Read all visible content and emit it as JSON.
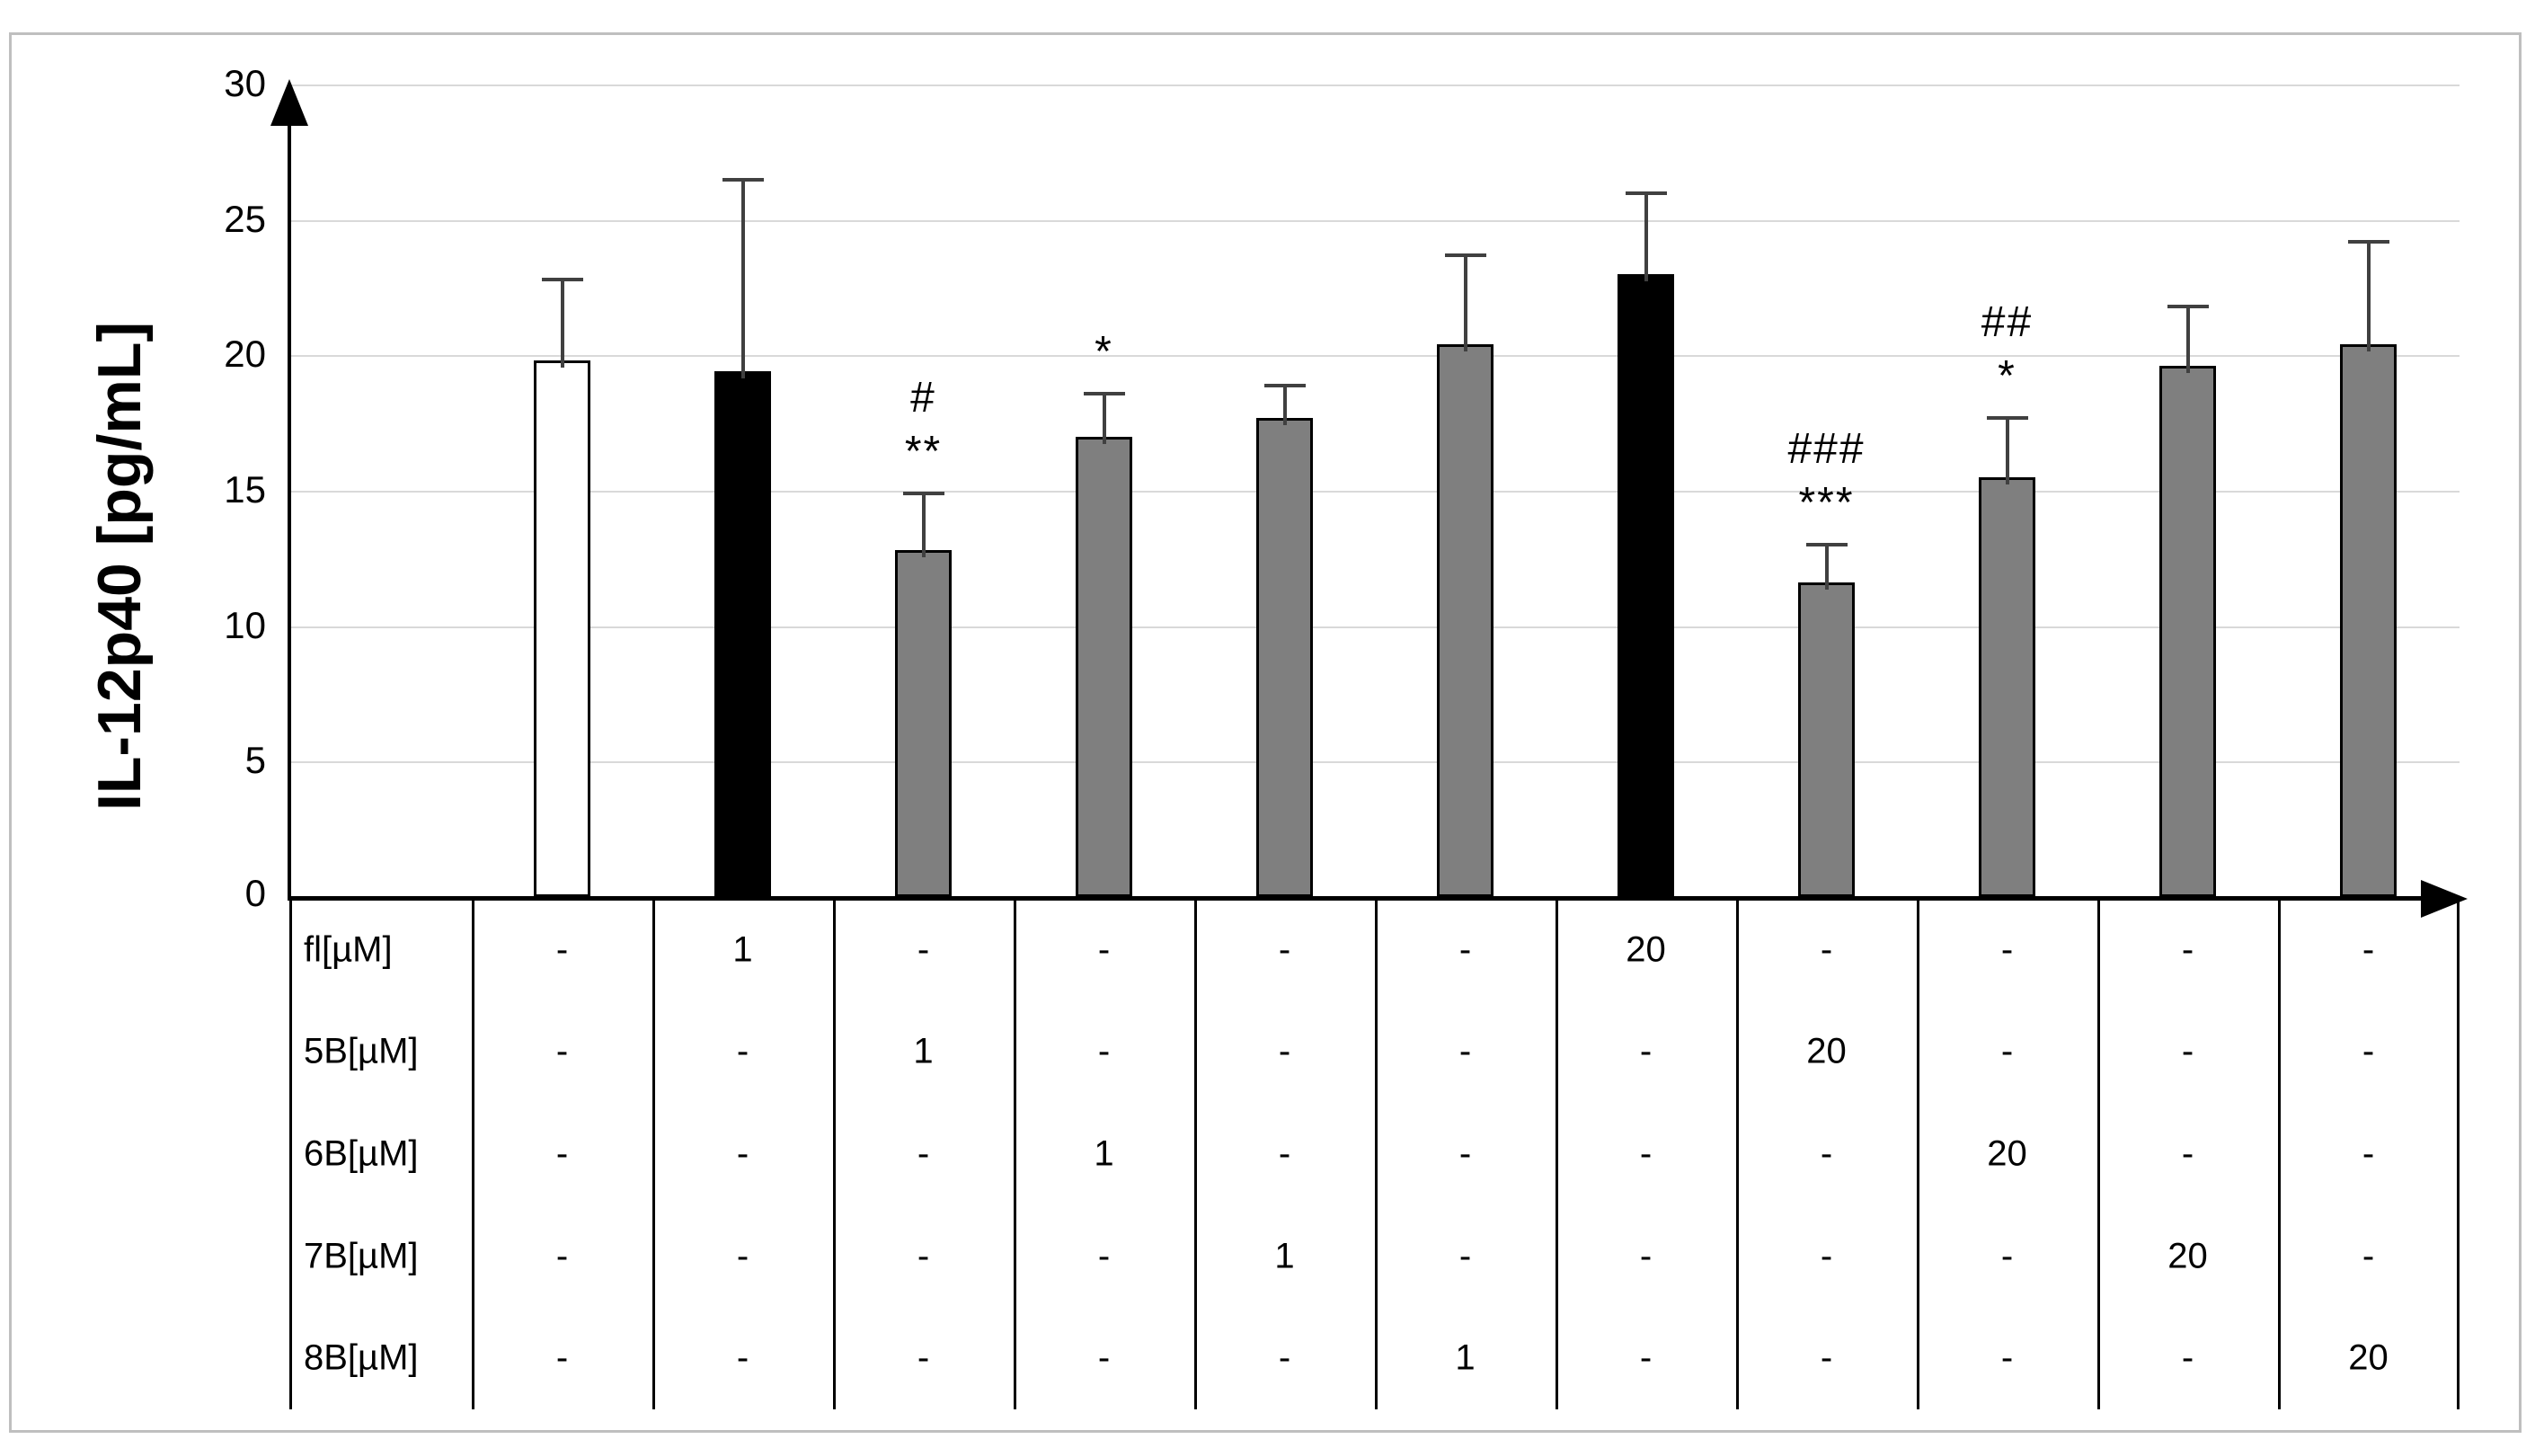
{
  "chart_data": {
    "type": "bar",
    "title": "",
    "xlabel": "",
    "ylabel": "IL-12p40 [pg/mL]",
    "ylim": [
      0,
      30
    ],
    "ytick_step": 5,
    "yticks": [
      "0",
      "5",
      "10",
      "15",
      "20",
      "25",
      "30"
    ],
    "grid": true,
    "legend": "none",
    "categories": [
      "control",
      "fl 1µM",
      "5B 1µM",
      "6B 1µM",
      "7B 1µM",
      "8B 1µM",
      "fl 20µM",
      "5B 20µM",
      "6B 20µM",
      "7B 20µM",
      "8B 20µM"
    ],
    "values": [
      19.8,
      19.4,
      12.8,
      17.0,
      17.7,
      20.4,
      23.0,
      11.6,
      15.5,
      19.6,
      20.4
    ],
    "error_tops": [
      22.8,
      26.5,
      14.9,
      18.6,
      18.9,
      23.7,
      26.0,
      13.0,
      17.7,
      21.8,
      24.2
    ],
    "bar_fills": [
      "#ffffff",
      "#000000",
      "#7f7f7f",
      "#7f7f7f",
      "#7f7f7f",
      "#7f7f7f",
      "#000000",
      "#7f7f7f",
      "#7f7f7f",
      "#7f7f7f",
      "#7f7f7f"
    ],
    "annotations": [
      [],
      [],
      [
        "#",
        "**"
      ],
      [
        "*"
      ],
      [],
      [],
      [],
      [
        "###",
        "***"
      ],
      [
        "##",
        "*"
      ],
      [],
      []
    ]
  },
  "dose_table": {
    "unit_suffix": "[µM]",
    "rows": [
      {
        "label": "fl[µM]",
        "cells": [
          "-",
          "1",
          "-",
          "-",
          "-",
          "-",
          "20",
          "-",
          "-",
          "-",
          "-"
        ]
      },
      {
        "label": "5B[µM]",
        "cells": [
          "-",
          "-",
          "1",
          "-",
          "-",
          "-",
          "-",
          "20",
          "-",
          "-",
          "-"
        ]
      },
      {
        "label": "6B[µM]",
        "cells": [
          "-",
          "-",
          "-",
          "1",
          "-",
          "-",
          "-",
          "-",
          "20",
          "-",
          "-"
        ]
      },
      {
        "label": "7B[µM]",
        "cells": [
          "-",
          "-",
          "-",
          "-",
          "1",
          "-",
          "-",
          "-",
          "-",
          "20",
          "-"
        ]
      },
      {
        "label": "8B[µM]",
        "cells": [
          "-",
          "-",
          "-",
          "-",
          "-",
          "1",
          "-",
          "-",
          "-",
          "-",
          "20"
        ]
      }
    ]
  },
  "colors": {
    "bar_gray": "#7f7f7f",
    "bar_black": "#000000",
    "bar_white": "#ffffff",
    "bar_border": "#000000",
    "error_bar": "#404040",
    "gridline": "#d9d9d9",
    "axis": "#000000",
    "figure_border": "#bfbfbf",
    "background": "#ffffff"
  }
}
